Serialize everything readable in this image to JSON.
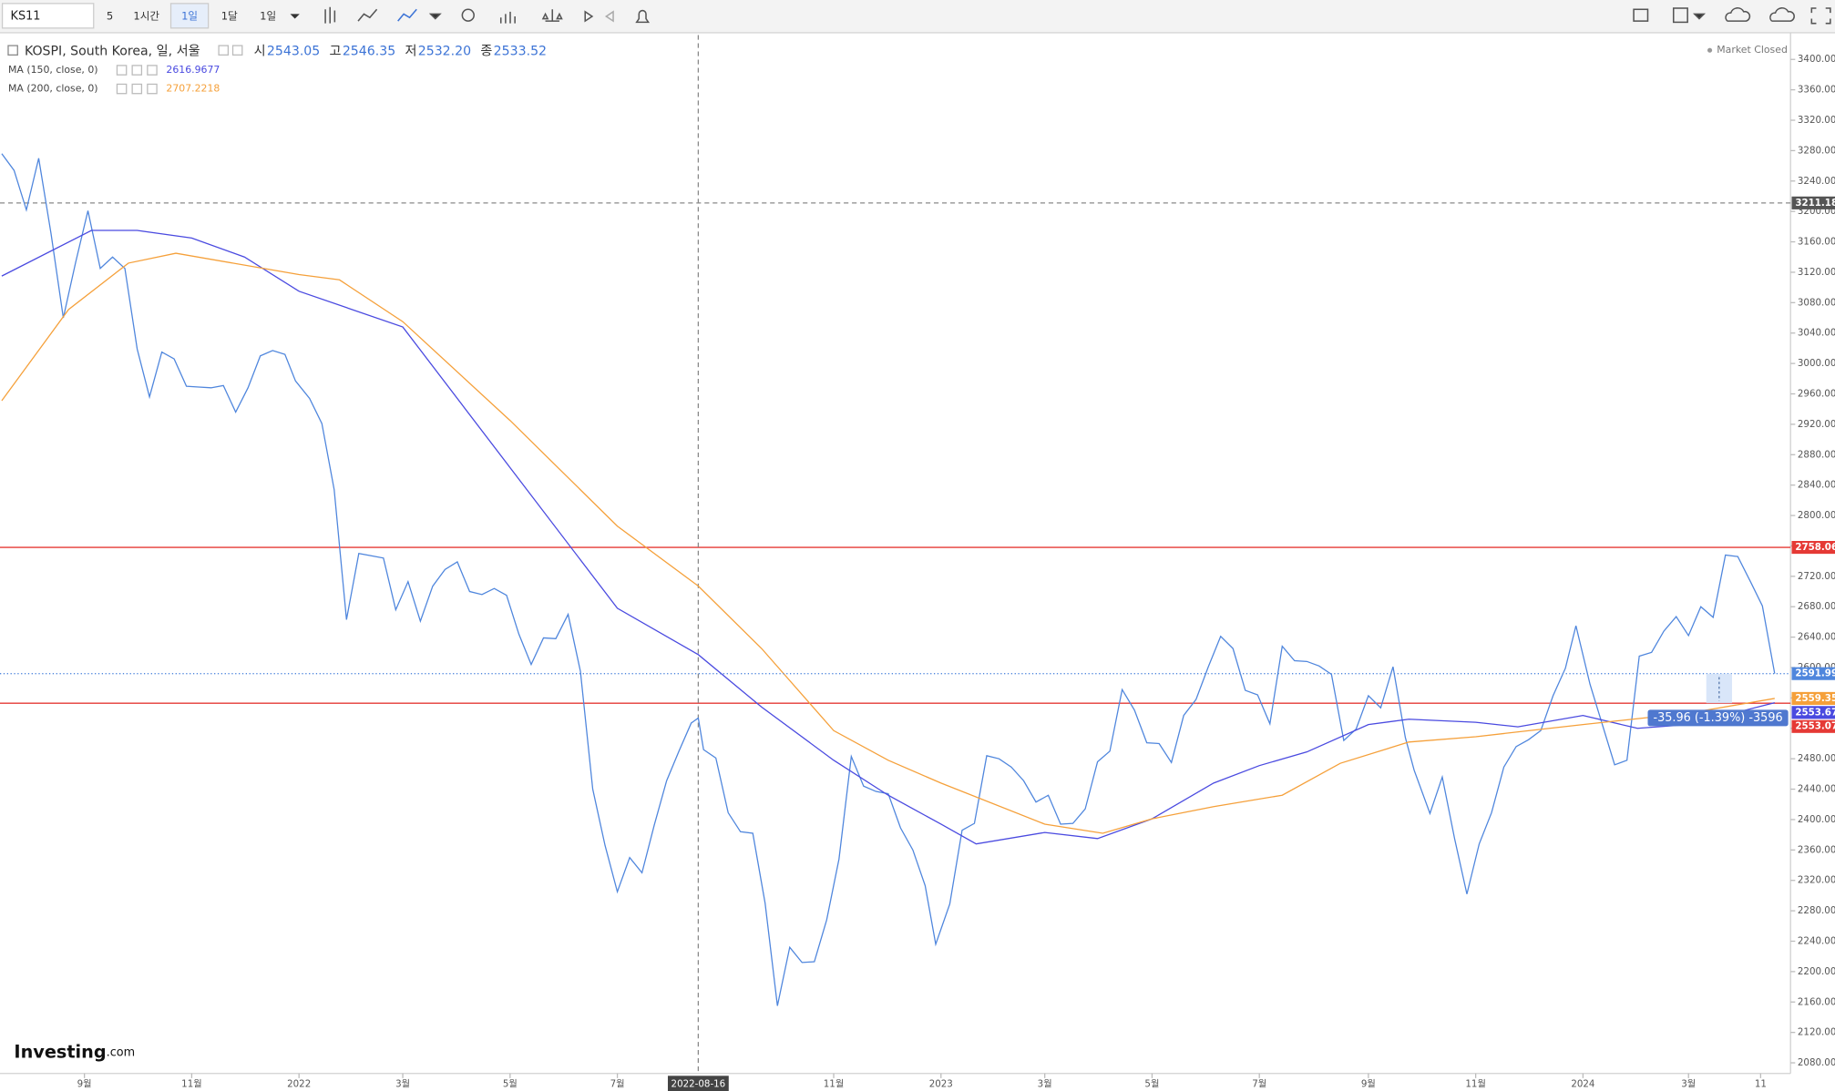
{
  "toolbar": {
    "symbol": "KS11",
    "items": [
      "5",
      "1시간",
      "1일",
      "1달",
      "1일"
    ]
  },
  "header": {
    "ohlc": [
      {
        "label": "시",
        "value": "2543.05"
      },
      {
        "label": "고",
        "value": "2546.35"
      },
      {
        "label": "저",
        "value": "2532.20"
      },
      {
        "label": "종",
        "value": "2533.52"
      }
    ],
    "status": "Market Closed",
    "logo": "Investing",
    "logo_suffix": ".com"
  },
  "chart_data": {
    "type": "line",
    "x_axis": "date",
    "xlim": [
      "2021-07-15",
      "2024-04-28"
    ],
    "xticks": [
      {
        "value": "2021-09-01",
        "label": "9월"
      },
      {
        "value": "2021-11-01",
        "label": "11월"
      },
      {
        "value": "2022-01-01",
        "label": "2022"
      },
      {
        "value": "2022-03-01",
        "label": "3월"
      },
      {
        "value": "2022-05-01",
        "label": "5월"
      },
      {
        "value": "2022-07-01",
        "label": "7월"
      },
      {
        "value": "2022-11-01",
        "label": "11월"
      },
      {
        "value": "2023-01-01",
        "label": "2023"
      },
      {
        "value": "2023-03-01",
        "label": "3월"
      },
      {
        "value": "2023-05-01",
        "label": "5월"
      },
      {
        "value": "2023-07-01",
        "label": "7월"
      },
      {
        "value": "2023-09-01",
        "label": "9월"
      },
      {
        "value": "2023-11-01",
        "label": "11월"
      },
      {
        "value": "2024-01-01",
        "label": "2024"
      },
      {
        "value": "2024-03-01",
        "label": "3월"
      },
      {
        "value": "2024-04-11",
        "label": "11"
      }
    ],
    "ylim": [
      2066,
      3432
    ],
    "yticks": [
      {
        "value": 2080,
        "label": "2080.00"
      },
      {
        "value": 2120,
        "label": "2120.00"
      },
      {
        "value": 2160,
        "label": "2160.00"
      },
      {
        "value": 2200,
        "label": "2200.00"
      },
      {
        "value": 2240,
        "label": "2240.00"
      },
      {
        "value": 2280,
        "label": "2280.00"
      },
      {
        "value": 2320,
        "label": "2320.00"
      },
      {
        "value": 2360,
        "label": "2360.00"
      },
      {
        "value": 2400,
        "label": "2400.00"
      },
      {
        "value": 2440,
        "label": "2440.00"
      },
      {
        "value": 2480,
        "label": "2480.00"
      },
      {
        "value": 2520,
        "label": "2520.00"
      },
      {
        "value": 2560,
        "label": "2560.00"
      },
      {
        "value": 2600,
        "label": "2600.00"
      },
      {
        "value": 2640,
        "label": "2640.00"
      },
      {
        "value": 2680,
        "label": "2680.00"
      },
      {
        "value": 2720,
        "label": "2720.00"
      },
      {
        "value": 2760,
        "label": "2760.00"
      },
      {
        "value": 2800,
        "label": "2800.00"
      },
      {
        "value": 2840,
        "label": "2840.00"
      },
      {
        "value": 2880,
        "label": "2880.00"
      },
      {
        "value": 2920,
        "label": "2920.00"
      },
      {
        "value": 2960,
        "label": "2960.00"
      },
      {
        "value": 3000,
        "label": "3000.00"
      },
      {
        "value": 3040,
        "label": "3040.00"
      },
      {
        "value": 3080,
        "label": "3080.00"
      },
      {
        "value": 3120,
        "label": "3120.00"
      },
      {
        "value": 3160,
        "label": "3160.00"
      },
      {
        "value": 3200,
        "label": "3200.00"
      },
      {
        "value": 3240,
        "label": "3240.00"
      },
      {
        "value": 3280,
        "label": "3280.00"
      },
      {
        "value": 3320,
        "label": "3320.00"
      },
      {
        "value": 3360,
        "label": "3360.00"
      },
      {
        "value": 3400,
        "label": "3400.00"
      }
    ],
    "grid": false,
    "series": [
      {
        "name": "KOSPI, South Korea, 일, 서울",
        "color": "#4f86dd",
        "x": [
          "2021-07-16",
          "2021-07-23",
          "2021-07-30",
          "2021-08-06",
          "2021-08-13",
          "2021-08-20",
          "2021-08-27",
          "2021-09-03",
          "2021-09-10",
          "2021-09-17",
          "2021-09-24",
          "2021-10-01",
          "2021-10-08",
          "2021-10-15",
          "2021-10-22",
          "2021-10-29",
          "2021-11-05",
          "2021-11-12",
          "2021-11-19",
          "2021-11-26",
          "2021-12-03",
          "2021-12-10",
          "2021-12-17",
          "2021-12-24",
          "2021-12-30",
          "2022-01-07",
          "2022-01-14",
          "2022-01-21",
          "2022-01-28",
          "2022-02-04",
          "2022-02-11",
          "2022-02-18",
          "2022-02-25",
          "2022-03-04",
          "2022-03-11",
          "2022-03-18",
          "2022-03-25",
          "2022-04-01",
          "2022-04-08",
          "2022-04-15",
          "2022-04-22",
          "2022-04-29",
          "2022-05-06",
          "2022-05-13",
          "2022-05-20",
          "2022-05-27",
          "2022-06-03",
          "2022-06-10",
          "2022-06-17",
          "2022-06-24",
          "2022-07-01",
          "2022-07-08",
          "2022-07-15",
          "2022-07-22",
          "2022-07-29",
          "2022-08-05",
          "2022-08-12",
          "2022-08-16",
          "2022-08-19",
          "2022-08-26",
          "2022-09-02",
          "2022-09-09",
          "2022-09-16",
          "2022-09-23",
          "2022-09-30",
          "2022-10-07",
          "2022-10-14",
          "2022-10-21",
          "2022-10-28",
          "2022-11-04",
          "2022-11-11",
          "2022-11-18",
          "2022-11-25",
          "2022-12-02",
          "2022-12-09",
          "2022-12-16",
          "2022-12-23",
          "2022-12-29",
          "2023-01-06",
          "2023-01-13",
          "2023-01-20",
          "2023-01-27",
          "2023-02-03",
          "2023-02-10",
          "2023-02-17",
          "2023-02-24",
          "2023-03-03",
          "2023-03-10",
          "2023-03-17",
          "2023-03-24",
          "2023-03-31",
          "2023-04-07",
          "2023-04-14",
          "2023-04-21",
          "2023-04-28",
          "2023-05-05",
          "2023-05-12",
          "2023-05-19",
          "2023-05-26",
          "2023-06-02",
          "2023-06-09",
          "2023-06-16",
          "2023-06-23",
          "2023-06-30",
          "2023-07-07",
          "2023-07-14",
          "2023-07-21",
          "2023-07-28",
          "2023-08-04",
          "2023-08-11",
          "2023-08-18",
          "2023-08-25",
          "2023-09-01",
          "2023-09-08",
          "2023-09-15",
          "2023-09-22",
          "2023-09-27",
          "2023-10-06",
          "2023-10-13",
          "2023-10-20",
          "2023-10-27",
          "2023-11-03",
          "2023-11-10",
          "2023-11-17",
          "2023-11-24",
          "2023-12-01",
          "2023-12-08",
          "2023-12-15",
          "2023-12-22",
          "2023-12-28",
          "2024-01-05",
          "2024-01-12",
          "2024-01-19",
          "2024-01-26",
          "2024-02-02",
          "2024-02-09",
          "2024-02-16",
          "2024-02-23",
          "2024-03-01",
          "2024-03-08",
          "2024-03-15",
          "2024-03-22",
          "2024-03-29",
          "2024-04-05",
          "2024-04-12",
          "2024-04-19"
        ],
        "values": [
          3276,
          3254,
          3202,
          3270,
          3171,
          3060,
          3133,
          3201,
          3125,
          3140,
          3125,
          3019,
          2956,
          3015,
          3006,
          2970,
          2969,
          2968,
          2971,
          2936,
          2968,
          3010,
          3017,
          3012,
          2977,
          2954,
          2921,
          2834,
          2663,
          2750,
          2747,
          2744,
          2676,
          2713,
          2661,
          2707,
          2729,
          2739,
          2700,
          2696,
          2704,
          2695,
          2644,
          2604,
          2639,
          2638,
          2670,
          2595,
          2440,
          2366,
          2305,
          2350,
          2330,
          2393,
          2451,
          2490,
          2527,
          2533.52,
          2492,
          2481,
          2409,
          2384,
          2382,
          2290,
          2155,
          2232,
          2212,
          2213,
          2268,
          2348,
          2483,
          2444,
          2437,
          2434,
          2389,
          2360,
          2313,
          2236,
          2289,
          2386,
          2395,
          2484,
          2480,
          2469,
          2451,
          2423,
          2432,
          2394,
          2395,
          2414,
          2476,
          2490,
          2571,
          2544,
          2501,
          2500,
          2475,
          2537,
          2558,
          2601,
          2641,
          2625,
          2570,
          2564,
          2526,
          2628,
          2609,
          2608,
          2602,
          2591,
          2504,
          2519,
          2563,
          2547,
          2601,
          2508,
          2465,
          2408,
          2456,
          2375,
          2302,
          2368,
          2409,
          2469,
          2496,
          2505,
          2517,
          2563,
          2599,
          2655,
          2578,
          2525,
          2472,
          2478,
          2615,
          2620,
          2648,
          2667,
          2642,
          2680,
          2666,
          2748,
          2746,
          2714,
          2681,
          2591.99
        ]
      },
      {
        "name": "MA (150, close, 0)",
        "color": "#4a4ae0",
        "legend_value": 2616.9677,
        "x": [
          "2021-07-16",
          "2021-09-05",
          "2021-10-01",
          "2021-11-01",
          "2021-12-01",
          "2022-01-01",
          "2022-03-01",
          "2022-05-01",
          "2022-07-01",
          "2022-08-16",
          "2022-09-21",
          "2022-11-01",
          "2022-12-02",
          "2023-01-01",
          "2023-01-21",
          "2023-03-01",
          "2023-03-31",
          "2023-05-01",
          "2023-06-05",
          "2023-07-01",
          "2023-07-28",
          "2023-09-01",
          "2023-09-24",
          "2023-11-01",
          "2023-11-25",
          "2024-01-01",
          "2024-02-01",
          "2024-03-01",
          "2024-04-19"
        ],
        "values": [
          3115,
          3175,
          3175,
          3165,
          3140,
          3095,
          3048,
          2863,
          2678,
          2616.9677,
          2548,
          2478,
          2432,
          2394,
          2368,
          2383,
          2375,
          2401,
          2448,
          2471,
          2489,
          2525,
          2532,
          2528,
          2522,
          2537,
          2520,
          2525,
          2553.67
        ]
      },
      {
        "name": "MA (200, close, 0)",
        "color": "#f5a03a",
        "legend_value": 2707.2218,
        "x": [
          "2021-07-16",
          "2021-08-23",
          "2021-09-26",
          "2021-10-23",
          "2022-01-01",
          "2022-01-24",
          "2022-03-01",
          "2022-05-01",
          "2022-07-01",
          "2022-08-16",
          "2022-09-21",
          "2022-11-01",
          "2022-12-02",
          "2023-01-01",
          "2023-03-01",
          "2023-04-03",
          "2023-05-01",
          "2023-06-05",
          "2023-07-14",
          "2023-08-16",
          "2023-09-24",
          "2023-11-01",
          "2024-01-01",
          "2024-03-01",
          "2024-04-19"
        ],
        "values": [
          2951,
          3071,
          3132,
          3145,
          3117,
          3110,
          3055,
          2925,
          2786,
          2707.2218,
          2625,
          2517,
          2478,
          2448,
          2394,
          2382,
          2401,
          2417,
          2432,
          2474,
          2502,
          2509,
          2525,
          2540,
          2559.35
        ]
      }
    ],
    "hlines": [
      {
        "value": 2758.06,
        "color": "#e53935"
      },
      {
        "value": 2553.07,
        "color": "#e53935"
      }
    ],
    "crosshair": {
      "x": "2022-08-16",
      "y": 3211.18
    },
    "annotation": "-35.96 (-1.39%) -3596"
  }
}
